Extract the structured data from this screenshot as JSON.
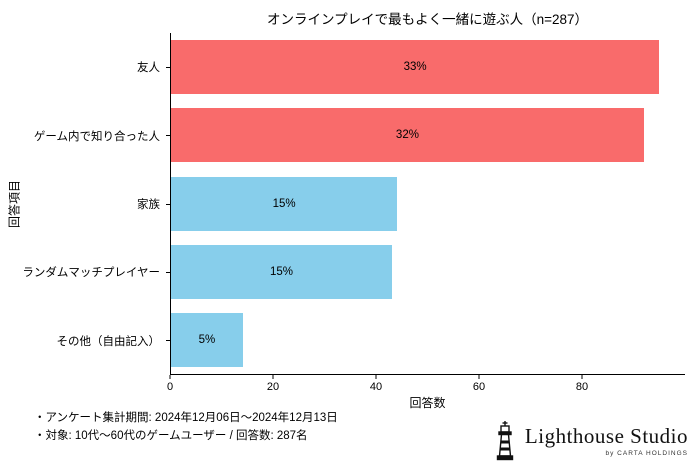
{
  "title": "オンラインプレイで最もよく一緒に遊ぶ人（n=287）",
  "chart_data": {
    "type": "bar",
    "orientation": "horizontal",
    "title": "オンラインプレイで最もよく一緒に遊ぶ人（n=287）",
    "n": 287,
    "categories": [
      "友人",
      "ゲーム内で知り合った人",
      "家族",
      "ランダムマッチプレイヤー",
      "その他（自由記入）"
    ],
    "values": [
      95,
      92,
      44,
      43,
      14
    ],
    "percent_labels": [
      "33%",
      "32%",
      "15%",
      "15%",
      "5%"
    ],
    "bar_colors": [
      "#F96B6B",
      "#F96B6B",
      "#87CEEB",
      "#87CEEB",
      "#87CEEB"
    ],
    "xlabel": "回答数",
    "ylabel": "回答項目",
    "xlim": [
      0,
      100
    ],
    "xticks": [
      0,
      20,
      40,
      60,
      80
    ],
    "grid": false,
    "legend": "none"
  },
  "footer": {
    "note1": "・アンケート集計期間: 2024年12月06日〜2024年12月13日",
    "note2": "・対象: 10代〜60代のゲームユーザー / 回答数: 287名"
  },
  "logo": {
    "icon": "lighthouse-icon",
    "name": "Lighthouse Studio",
    "subtitle": "by CARTA HOLDINGS"
  },
  "colors": {
    "bar_red": "#F96B6B",
    "bar_blue": "#87CEEB",
    "axis": "#000000",
    "background": "#FFFFFF"
  }
}
